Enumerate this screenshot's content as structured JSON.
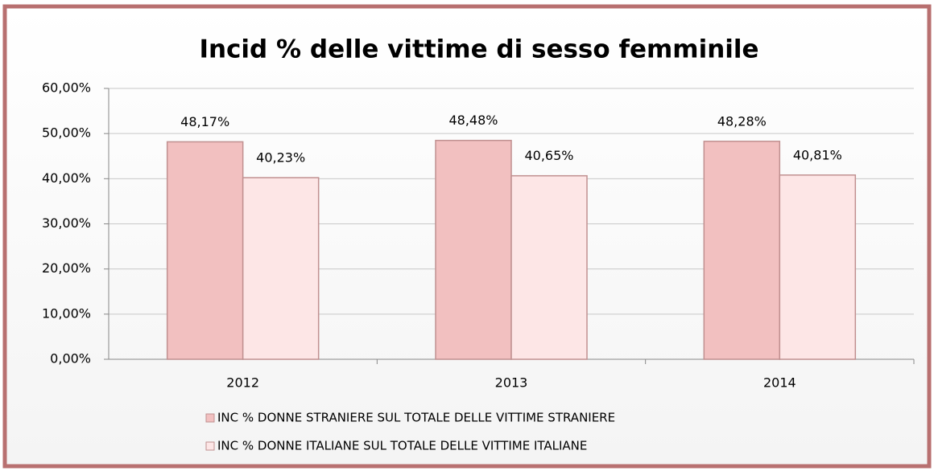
{
  "chart_data": {
    "type": "bar",
    "title": "Incid % delle vittime di sesso femminile",
    "categories": [
      "2012",
      "2013",
      "2014"
    ],
    "series": [
      {
        "name": "INC % DONNE STRANIERE SUL TOTALE DELLE VITTIME STRANIERE",
        "color": "#f2c0c0",
        "values": [
          48.17,
          48.48,
          48.28
        ],
        "value_labels": [
          "48,17%",
          "48,48%",
          "48,28%"
        ]
      },
      {
        "name": "INC % DONNE ITALIANE SUL TOTALE DELLE VITTIME ITALIANE",
        "color": "#fde6e6",
        "values": [
          40.23,
          40.65,
          40.81
        ],
        "value_labels": [
          "40,23%",
          "40,65%",
          "40,81%"
        ]
      }
    ],
    "ylim": [
      0,
      60
    ],
    "yticks": [
      {
        "value": 0,
        "label": "0,00%"
      },
      {
        "value": 10,
        "label": "10,00%"
      },
      {
        "value": 20,
        "label": "20,00%"
      },
      {
        "value": 30,
        "label": "30,00%"
      },
      {
        "value": 40,
        "label": "40,00%"
      },
      {
        "value": 50,
        "label": "50,00%"
      },
      {
        "value": 60,
        "label": "60,00%"
      }
    ],
    "grid": true,
    "legend": "bottom"
  }
}
